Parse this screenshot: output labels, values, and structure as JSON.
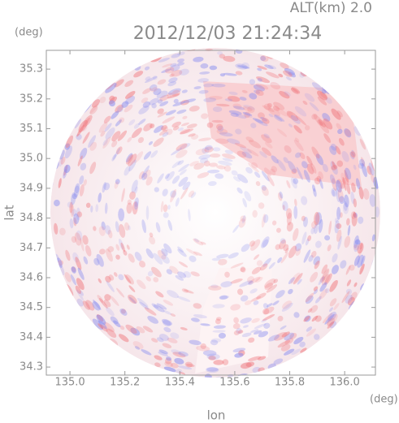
{
  "chart_data": {
    "type": "radar-map",
    "title": "2012/12/03 21:24:34",
    "annotation": "ALT(km)  2.0",
    "x_label": "lon",
    "y_label": "lat",
    "x_unit": "(deg)",
    "y_unit": "(deg)",
    "xlim": [
      134.914,
      136.112
    ],
    "ylim": [
      34.273,
      35.363
    ],
    "xticks": [
      {
        "value": 135.0,
        "label": "135.0"
      },
      {
        "value": 135.2,
        "label": "135.2"
      },
      {
        "value": 135.4,
        "label": "135.4"
      },
      {
        "value": 135.6,
        "label": "135.6"
      },
      {
        "value": 135.8,
        "label": "135.8"
      },
      {
        "value": 136.0,
        "label": "136.0"
      }
    ],
    "yticks": [
      {
        "value": 34.3,
        "label": "34.3"
      },
      {
        "value": 34.4,
        "label": "34.4"
      },
      {
        "value": 34.5,
        "label": "34.5"
      },
      {
        "value": 34.6,
        "label": "34.6"
      },
      {
        "value": 34.7,
        "label": "34.7"
      },
      {
        "value": 34.8,
        "label": "34.8"
      },
      {
        "value": 34.9,
        "label": "34.9"
      },
      {
        "value": 35.0,
        "label": "35.0"
      },
      {
        "value": 35.1,
        "label": "35.1"
      },
      {
        "value": 35.2,
        "label": "35.2"
      },
      {
        "value": 35.3,
        "label": "35.3"
      }
    ]
  }
}
